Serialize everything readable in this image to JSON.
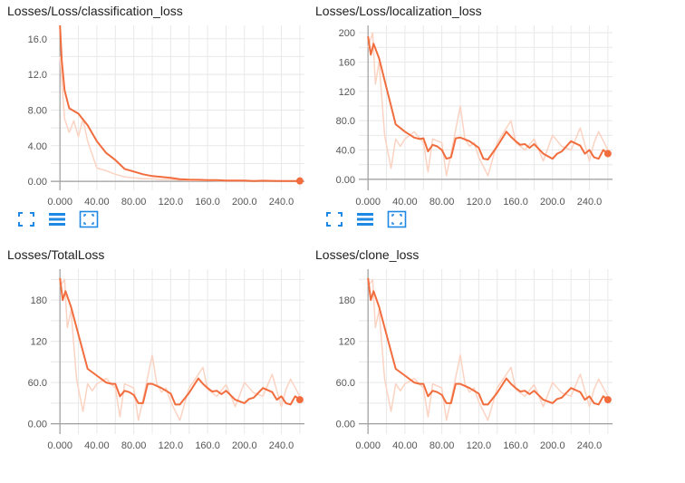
{
  "colors": {
    "line": "#f26d3d",
    "raw_line": "#fbd3c3",
    "grid": "#e8e8e8",
    "axis": "#9e9e9e",
    "tick_text": "#555555",
    "toolbar_icon": "#1e88e5"
  },
  "toolbar_icons": [
    "fit-domain-icon",
    "log-scale-icon",
    "data-select-icon"
  ],
  "chart_data": [
    {
      "type": "line",
      "title": "Losses/Loss/classification_loss",
      "x_ticks": [
        "0.000",
        "40.00",
        "80.00",
        "120.0",
        "160.0",
        "200.0",
        "240.0"
      ],
      "y_ticks": [
        "0.00",
        "4.00",
        "8.00",
        "12.0",
        "16.0"
      ],
      "xlim": [
        -10,
        265
      ],
      "ylim": [
        -1,
        17.5
      ],
      "series": [
        {
          "x": [
            0,
            2,
            5,
            10,
            20,
            30,
            40,
            50,
            60,
            70,
            80,
            90,
            100,
            110,
            120,
            130,
            140,
            150,
            160,
            170,
            180,
            190,
            200,
            210,
            220,
            230,
            240,
            250,
            260
          ],
          "y": [
            17.5,
            13.5,
            10.2,
            8.2,
            7.6,
            6.3,
            4.5,
            3.2,
            2.4,
            1.4,
            1.1,
            0.8,
            0.6,
            0.5,
            0.4,
            0.25,
            0.2,
            0.18,
            0.15,
            0.15,
            0.1,
            0.1,
            0.1,
            0.05,
            0.08,
            0.06,
            0.05,
            0.05,
            0.05
          ]
        },
        {
          "x": [
            0,
            5,
            10,
            15,
            20,
            25,
            30,
            40,
            50,
            60,
            70,
            80,
            90,
            100,
            110,
            120,
            140,
            160,
            180,
            200,
            220,
            240,
            260
          ],
          "y": [
            14,
            7,
            5.5,
            6.8,
            5,
            7,
            4.5,
            1.5,
            1.2,
            0.8,
            0.5,
            0.4,
            0.3,
            0.3,
            0.2,
            0.2,
            0.1,
            0.1,
            0.05,
            0.05,
            0.05,
            0.05,
            0.05
          ],
          "raw": true
        }
      ]
    },
    {
      "type": "line",
      "title": "Losses/Loss/localization_loss",
      "x_ticks": [
        "0.000",
        "40.00",
        "80.00",
        "120.0",
        "160.0",
        "200.0",
        "240.0"
      ],
      "y_ticks": [
        "0.00",
        "40.0",
        "80.0",
        "120",
        "160",
        "200"
      ],
      "xlim": [
        -10,
        265
      ],
      "ylim": [
        -15,
        210
      ],
      "series": [
        {
          "x": [
            0,
            3,
            6,
            12,
            20,
            30,
            40,
            50,
            56,
            60,
            65,
            70,
            75,
            80,
            85,
            90,
            95,
            100,
            110,
            120,
            125,
            130,
            140,
            150,
            155,
            160,
            165,
            170,
            175,
            180,
            190,
            200,
            205,
            210,
            220,
            230,
            235,
            240,
            245,
            250,
            255,
            260
          ],
          "y": [
            195,
            170,
            185,
            165,
            125,
            75,
            65,
            57,
            55,
            56,
            38,
            47,
            45,
            40,
            28,
            30,
            56,
            57,
            52,
            43,
            28,
            27,
            45,
            65,
            58,
            52,
            47,
            48,
            43,
            48,
            35,
            28,
            35,
            38,
            52,
            46,
            35,
            40,
            30,
            28,
            40,
            35
          ]
        },
        {
          "x": [
            0,
            5,
            8,
            12,
            18,
            25,
            30,
            35,
            40,
            50,
            60,
            65,
            70,
            80,
            85,
            90,
            100,
            105,
            110,
            115,
            120,
            130,
            140,
            150,
            155,
            160,
            170,
            180,
            190,
            200,
            210,
            220,
            230,
            240,
            245,
            250,
            260
          ],
          "y": [
            180,
            200,
            130,
            160,
            60,
            15,
            55,
            45,
            55,
            65,
            50,
            10,
            55,
            50,
            5,
            35,
            100,
            55,
            45,
            50,
            30,
            5,
            50,
            70,
            80,
            50,
            40,
            55,
            25,
            60,
            45,
            40,
            70,
            25,
            50,
            65,
            40
          ],
          "raw": true
        }
      ]
    },
    {
      "type": "line",
      "title": "Losses/TotalLoss",
      "x_ticks": [
        "0.000",
        "40.00",
        "80.00",
        "120.0",
        "160.0",
        "200.0",
        "240.0"
      ],
      "y_ticks": [
        "0.00",
        "60.0",
        "120",
        "180"
      ],
      "xlim": [
        -10,
        265
      ],
      "ylim": [
        -15,
        225
      ],
      "series": [
        {
          "x": [
            0,
            3,
            6,
            12,
            20,
            30,
            40,
            50,
            56,
            60,
            65,
            70,
            75,
            80,
            85,
            90,
            95,
            100,
            110,
            120,
            125,
            130,
            140,
            150,
            155,
            160,
            165,
            170,
            175,
            180,
            190,
            200,
            205,
            210,
            220,
            230,
            235,
            240,
            245,
            250,
            255,
            260
          ],
          "y": [
            212,
            180,
            193,
            170,
            130,
            80,
            70,
            60,
            58,
            58,
            40,
            48,
            46,
            42,
            30,
            30,
            58,
            58,
            52,
            44,
            28,
            28,
            45,
            66,
            58,
            52,
            47,
            48,
            43,
            48,
            35,
            30,
            36,
            38,
            52,
            46,
            35,
            40,
            30,
            28,
            40,
            35
          ]
        },
        {
          "x": [
            0,
            5,
            8,
            12,
            18,
            25,
            30,
            35,
            40,
            50,
            60,
            65,
            70,
            80,
            85,
            90,
            100,
            105,
            110,
            115,
            120,
            130,
            140,
            150,
            155,
            160,
            170,
            180,
            190,
            200,
            210,
            220,
            230,
            240,
            245,
            250,
            260
          ],
          "y": [
            200,
            210,
            140,
            165,
            65,
            18,
            58,
            48,
            58,
            66,
            52,
            10,
            58,
            52,
            5,
            35,
            100,
            58,
            46,
            52,
            32,
            5,
            52,
            72,
            82,
            50,
            40,
            57,
            25,
            60,
            45,
            40,
            72,
            25,
            50,
            65,
            40
          ],
          "raw": true
        }
      ]
    },
    {
      "type": "line",
      "title": "Losses/clone_loss",
      "x_ticks": [
        "0.000",
        "40.00",
        "80.00",
        "120.0",
        "160.0",
        "200.0",
        "240.0"
      ],
      "y_ticks": [
        "0.00",
        "60.0",
        "120",
        "180"
      ],
      "xlim": [
        -10,
        265
      ],
      "ylim": [
        -15,
        225
      ],
      "series": [
        {
          "x": [
            0,
            3,
            6,
            12,
            20,
            30,
            40,
            50,
            56,
            60,
            65,
            70,
            75,
            80,
            85,
            90,
            95,
            100,
            110,
            120,
            125,
            130,
            140,
            150,
            155,
            160,
            165,
            170,
            175,
            180,
            190,
            200,
            205,
            210,
            220,
            230,
            235,
            240,
            245,
            250,
            255,
            260
          ],
          "y": [
            212,
            180,
            193,
            170,
            130,
            80,
            70,
            60,
            58,
            58,
            40,
            48,
            46,
            42,
            30,
            30,
            58,
            58,
            52,
            44,
            28,
            28,
            45,
            66,
            58,
            52,
            47,
            48,
            43,
            48,
            35,
            30,
            36,
            38,
            52,
            46,
            35,
            40,
            30,
            28,
            40,
            35
          ]
        },
        {
          "x": [
            0,
            5,
            8,
            12,
            18,
            25,
            30,
            35,
            40,
            50,
            60,
            65,
            70,
            80,
            85,
            90,
            100,
            105,
            110,
            115,
            120,
            130,
            140,
            150,
            155,
            160,
            170,
            180,
            190,
            200,
            210,
            220,
            230,
            240,
            245,
            250,
            260
          ],
          "y": [
            200,
            210,
            140,
            165,
            65,
            18,
            58,
            48,
            58,
            66,
            52,
            10,
            58,
            52,
            5,
            35,
            100,
            58,
            46,
            52,
            32,
            5,
            52,
            72,
            82,
            50,
            40,
            57,
            25,
            60,
            45,
            40,
            72,
            25,
            50,
            65,
            40
          ],
          "raw": true
        }
      ]
    }
  ]
}
